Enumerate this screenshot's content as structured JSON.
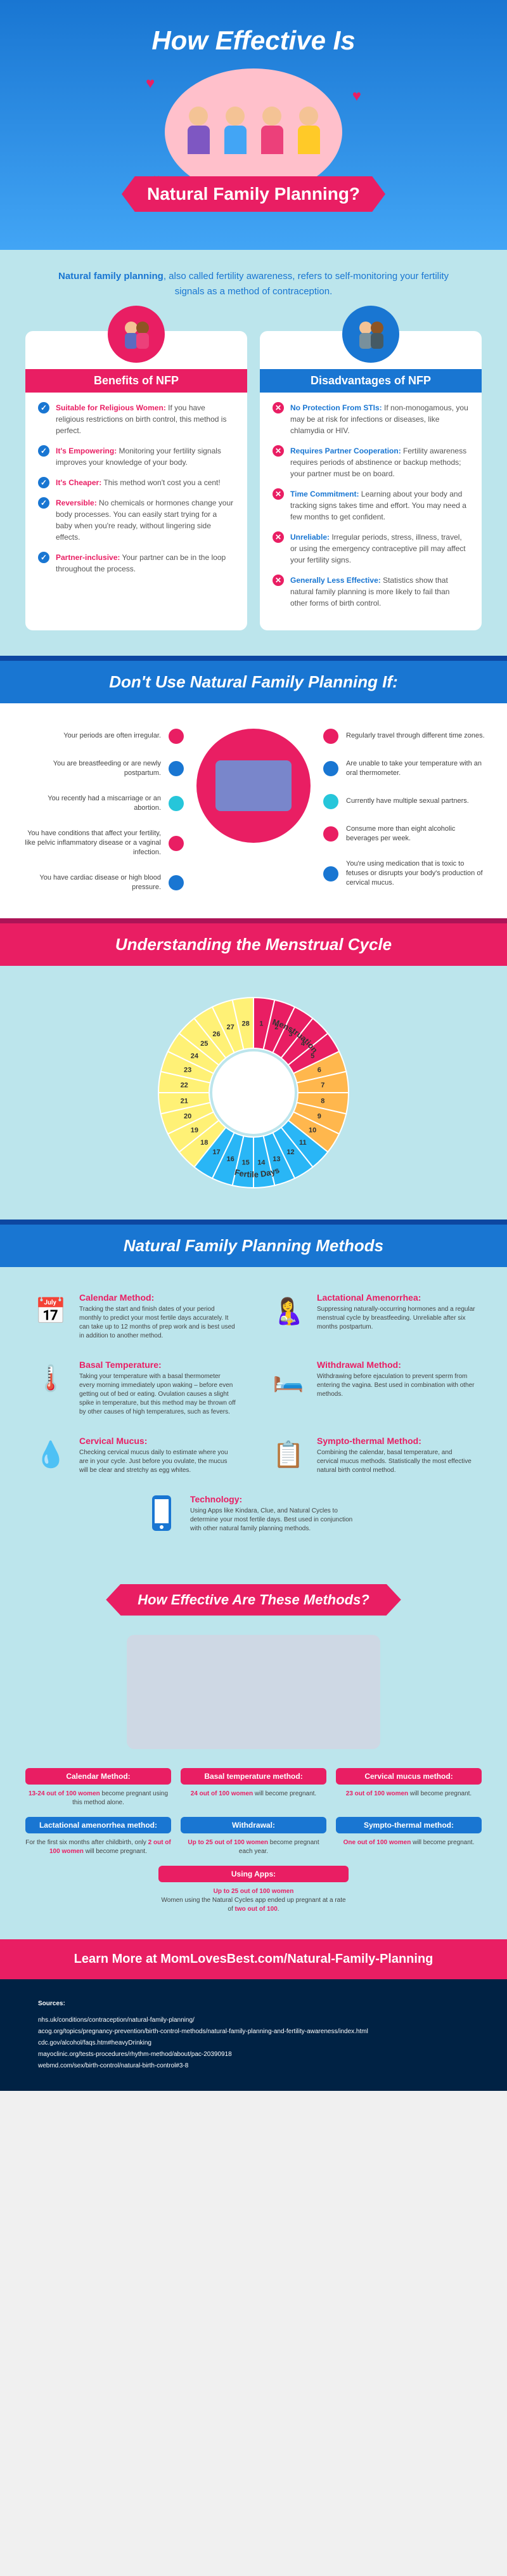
{
  "header": {
    "title": "How Effective Is",
    "banner": "Natural Family Planning?"
  },
  "intro": {
    "bold": "Natural family planning",
    "text": ", also called fertility awareness, refers to self-monitoring your fertility signals as a method of contraception."
  },
  "benefits": {
    "title": "Benefits of NFP",
    "items": [
      {
        "title": "Suitable for Religious Women:",
        "text": "If you have religious restrictions on birth control, this method is perfect."
      },
      {
        "title": "It's Empowering:",
        "text": "Monitoring your fertility signals improves your knowledge of your body."
      },
      {
        "title": "It's Cheaper:",
        "text": "This method won't cost you a cent!"
      },
      {
        "title": "Reversible:",
        "text": "No chemicals or hormones change your body processes. You can easily start trying for a baby when you're ready, without lingering side effects."
      },
      {
        "title": "Partner-inclusive:",
        "text": "Your partner can be in the loop throughout the process."
      }
    ]
  },
  "disadvantages": {
    "title": "Disadvantages of NFP",
    "items": [
      {
        "title": "No Protection From STIs:",
        "text": "If non-monogamous, you may be at risk for infections or diseases, like chlamydia or HIV."
      },
      {
        "title": "Requires Partner Cooperation:",
        "text": "Fertility awareness requires periods of abstinence or backup methods; your partner must be on board."
      },
      {
        "title": "Time Commitment:",
        "text": "Learning about your body and tracking signs takes time and effort. You may need a few months to get confident."
      },
      {
        "title": "Unreliable:",
        "text": "Irregular periods, stress, illness, travel, or using the emergency contraceptive pill may affect your fertility signs."
      },
      {
        "title": "Generally Less Effective:",
        "text": "Statistics show that natural family planning is more likely to fail than other forms of birth control."
      }
    ]
  },
  "dont_use": {
    "title": "Don't Use Natural Family Planning If:",
    "left": [
      "Your periods are often irregular.",
      "You are breastfeeding or are newly postpartum.",
      "You recently had a miscarriage or an abortion.",
      "You have conditions that affect your fertility, like pelvic inflammatory disease or a vaginal infection.",
      "You have cardiac disease or high blood pressure."
    ],
    "right": [
      "Regularly travel through different time zones.",
      "Are unable to take your temperature with an oral thermometer.",
      "Currently have multiple sexual partners.",
      "Consume more than eight alcoholic beverages per week.",
      "You're using medication that is toxic to fetuses or disrupts your body's production of cervical mucus."
    ]
  },
  "cycle": {
    "title": "Understanding the Menstrual Cycle",
    "labels": {
      "menstruation": "Menstruation",
      "fertile": "Fertile Days"
    },
    "segments": {
      "menstruation_color": "#e91e63",
      "fertile_color": "#29b6f6",
      "luteal_color": "#fff176",
      "follicular_color": "#ffb74d",
      "center_color": "#ffffff"
    }
  },
  "methods": {
    "title": "Natural Family Planning Methods",
    "items": [
      {
        "title": "Calendar Method:",
        "desc": "Tracking the start and finish dates of your period monthly to predict your most fertile days accurately. It can take up to 12 months of prep work and is best used in addition to another method."
      },
      {
        "title": "Lactational Amenorrhea:",
        "desc": "Suppressing naturally-occurring hormones and a regular menstrual cycle by breastfeeding. Unreliable after six months postpartum."
      },
      {
        "title": "Basal Temperature:",
        "desc": "Taking your temperature with a basal thermometer every morning immediately upon waking – before even getting out of bed or eating. Ovulation causes a slight spike in temperature, but this method may be thrown off by other causes of high temperatures, such as fevers."
      },
      {
        "title": "Withdrawal Method:",
        "desc": "Withdrawing before ejaculation to prevent sperm from entering the vagina. Best used in combination with other methods."
      },
      {
        "title": "Cervical Mucus:",
        "desc": "Checking cervical mucus daily to estimate where you are in your cycle. Just before you ovulate, the mucus will be clear and stretchy as egg whites."
      },
      {
        "title": "Sympto-thermal Method:",
        "desc": "Combining the calendar, basal temperature, and cervical mucus methods. Statistically the most effective natural birth control method."
      }
    ],
    "tech": {
      "title": "Technology:",
      "desc": "Using Apps like Kindara, Clue, and Natural Cycles to determine your most fertile days. Best used in conjunction with other natural family planning methods."
    }
  },
  "effectiveness": {
    "title": "How Effective Are These Methods?",
    "row1": [
      {
        "label": "Calendar Method:",
        "highlight": "13-24 out of 100 women",
        "text": "become pregnant using this method alone."
      },
      {
        "label": "Basal temperature method:",
        "highlight": "24 out of 100 women",
        "text": "will become pregnant."
      },
      {
        "label": "Cervical mucus method:",
        "highlight": "23 out of 100 women",
        "text": "will become pregnant."
      }
    ],
    "row2": [
      {
        "label": "Lactational amenorrhea method:",
        "pre": "For the first six months after childbirth, only ",
        "highlight": "2 out of 100 women",
        "text": " will become pregnant."
      },
      {
        "label": "Withdrawal:",
        "pre": "",
        "highlight": "Up to 25 out of 100 women",
        "text": " become pregnant each year."
      },
      {
        "label": "Sympto-thermal method:",
        "pre": "",
        "highlight": "One out of 100 women",
        "text": " will become pregnant."
      }
    ],
    "apps": {
      "label": "Using Apps:",
      "highlight": "Up to 25 out of 100 women",
      "pre": "Women using the Natural Cycles app ended up pregnant at a rate of ",
      "highlight2": "two out of 100",
      "text": "."
    }
  },
  "footer": {
    "cta": "Learn More at MomLovesBest.com/Natural-Family-Planning",
    "sources_title": "Sources:",
    "sources": [
      "nhs.uk/conditions/contraception/natural-family-planning/",
      "acog.org/topics/pregnancy-prevention/birth-control-methods/natural-family-planning-and-fertility-awareness/index.html",
      "cdc.gov/alcohol/faqs.htm#heavyDrinking",
      "mayoclinic.org/tests-procedures/rhythm-method/about/pac-20390918",
      "webmd.com/sex/birth-control/natural-birth-control#3-8"
    ]
  },
  "colors": {
    "primary_blue": "#1976d2",
    "primary_pink": "#e91e63",
    "bg_light": "#bce5ec",
    "dark_blue": "#0d47a1"
  }
}
